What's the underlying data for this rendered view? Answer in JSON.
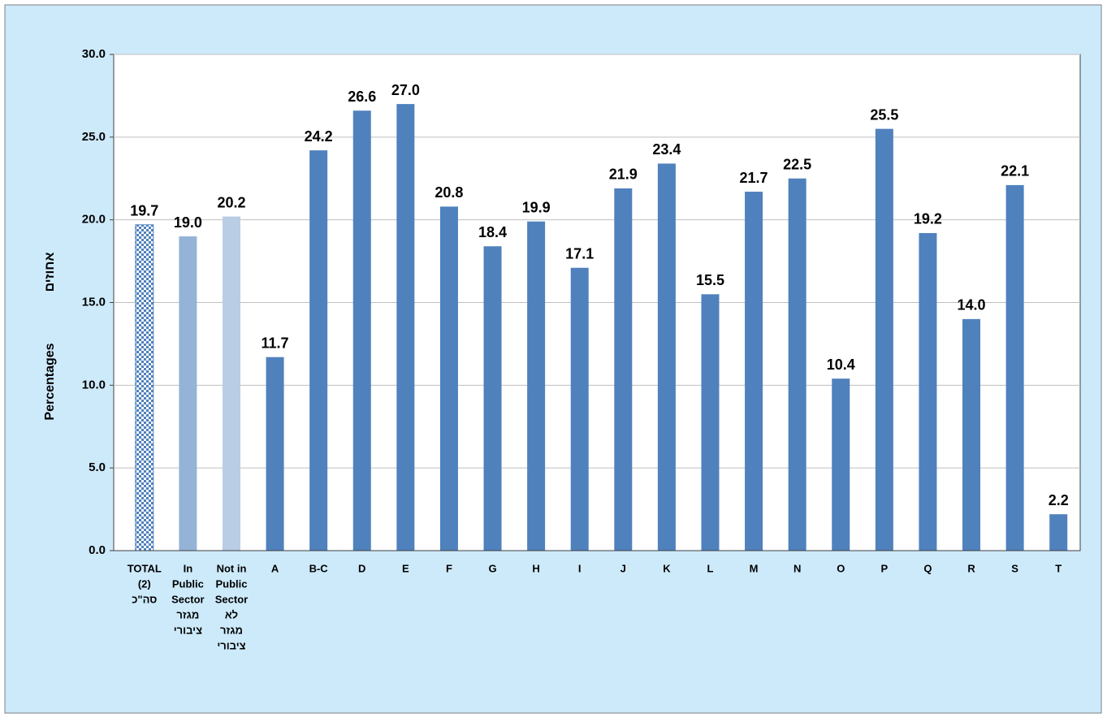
{
  "chart_data": {
    "type": "bar",
    "y_label": "Percentages",
    "y_label_he": "אחוזים",
    "categories": [
      [
        "TOTAL",
        "(2)",
        "סה\"כ"
      ],
      [
        "In",
        "Public",
        "Sector",
        "מגזר",
        "ציבורי"
      ],
      [
        "Not in",
        "Public",
        "Sector",
        "לא",
        "מגזר",
        "ציבורי"
      ],
      [
        "A"
      ],
      [
        "B-C"
      ],
      [
        "D"
      ],
      [
        "E"
      ],
      [
        "F"
      ],
      [
        "G"
      ],
      [
        "H"
      ],
      [
        "I"
      ],
      [
        "J"
      ],
      [
        "K"
      ],
      [
        "L"
      ],
      [
        "M"
      ],
      [
        "N"
      ],
      [
        "O"
      ],
      [
        "P"
      ],
      [
        "Q"
      ],
      [
        "R"
      ],
      [
        "S"
      ],
      [
        "T"
      ]
    ],
    "values": [
      19.7,
      19.0,
      20.2,
      11.7,
      24.2,
      26.6,
      27.0,
      20.8,
      18.4,
      19.9,
      17.1,
      21.9,
      23.4,
      15.5,
      21.7,
      22.5,
      10.4,
      25.5,
      19.2,
      14.0,
      22.1,
      2.2
    ],
    "value_labels": [
      "19.7",
      "19.0",
      "20.2",
      "11.7",
      "24.2",
      "26.6",
      "27.0",
      "20.8",
      "18.4",
      "19.9",
      "17.1",
      "21.9",
      "23.4",
      "15.5",
      "21.7",
      "22.5",
      "10.4",
      "25.5",
      "19.2",
      "14.0",
      "22.1",
      "2.2"
    ],
    "colors": [
      "#4f81bd",
      "#95b3d7",
      "#b9cde5",
      "#4f81bd",
      "#4f81bd",
      "#4f81bd",
      "#4f81bd",
      "#4f81bd",
      "#4f81bd",
      "#4f81bd",
      "#4f81bd",
      "#4f81bd",
      "#4f81bd",
      "#4f81bd",
      "#4f81bd",
      "#4f81bd",
      "#4f81bd",
      "#4f81bd",
      "#4f81bd",
      "#4f81bd",
      "#4f81bd",
      "#4f81bd"
    ],
    "pattern_bars": [
      0
    ],
    "ylim": [
      0,
      30
    ],
    "yticks": [
      {
        "value": 0,
        "label": "0.0"
      },
      {
        "value": 5,
        "label": "5.0"
      },
      {
        "value": 10,
        "label": "10.0"
      },
      {
        "value": 15,
        "label": "15.0"
      },
      {
        "value": 20,
        "label": "20.0"
      },
      {
        "value": 25,
        "label": "25.0"
      },
      {
        "value": 30,
        "label": "30.0"
      }
    ],
    "grid": true
  }
}
